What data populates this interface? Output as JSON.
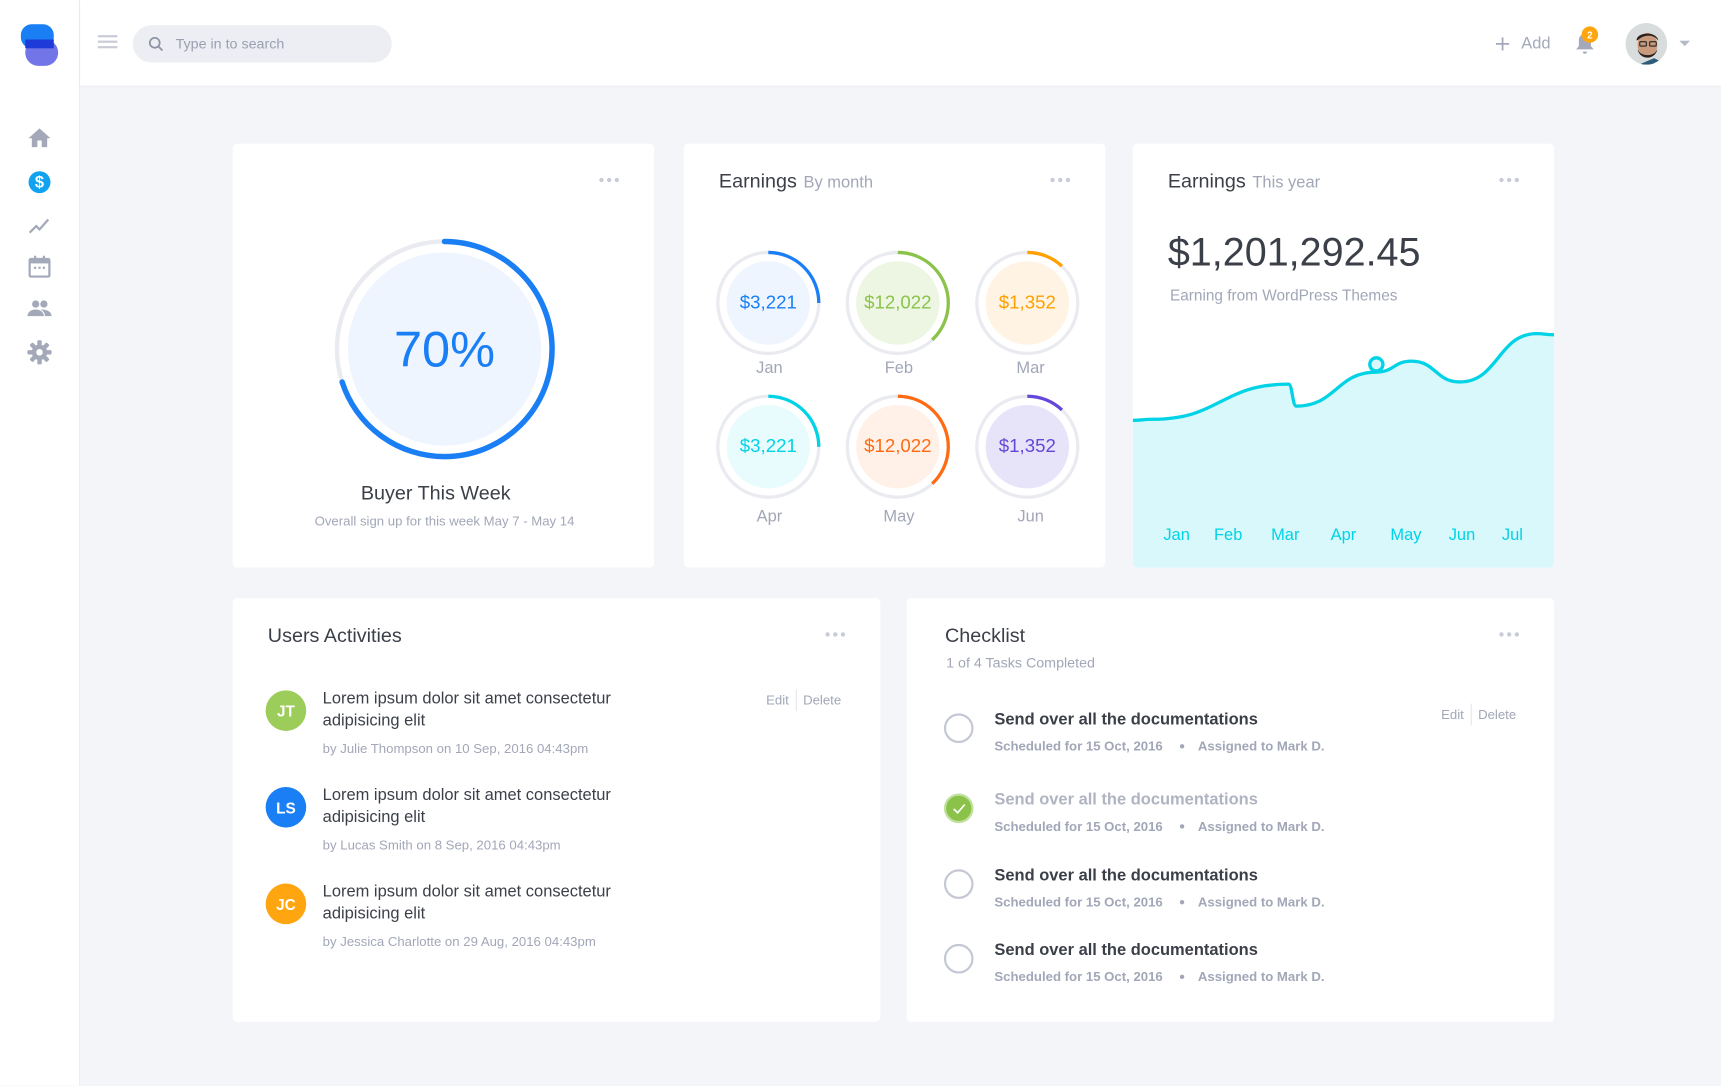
{
  "header": {
    "search_placeholder": "Type in to search",
    "add_label": "Add",
    "notification_count": "2"
  },
  "sidebar": {
    "items": [
      {
        "icon": "home-icon"
      },
      {
        "icon": "dollar-icon",
        "active": true
      },
      {
        "icon": "trend-icon"
      },
      {
        "icon": "calendar-icon"
      },
      {
        "icon": "users-icon"
      },
      {
        "icon": "gear-icon"
      }
    ]
  },
  "colors": {
    "accent": "#1a7ff5",
    "cyan": "#00d3e6",
    "green": "#8bc34a",
    "orange": "#ffa000"
  },
  "buyer": {
    "percent_label": "70%",
    "percent": 70,
    "title": "Buyer This Week",
    "subtitle": "Overall sign up for this week May 7 - May 14"
  },
  "earnings_month": {
    "title": "Earnings",
    "subtitle": "By month",
    "items": [
      {
        "month": "Jan",
        "value": "$3,221",
        "progress": 0.25,
        "color": "#1a7ff5",
        "bg": "#eef5fe"
      },
      {
        "month": "Feb",
        "value": "$12,022",
        "progress": 0.38,
        "color": "#8bc34a",
        "bg": "#edf6e3"
      },
      {
        "month": "Mar",
        "value": "$1,352",
        "progress": 0.12,
        "color": "#ffa000",
        "bg": "#fff4e3"
      },
      {
        "month": "Apr",
        "value": "$3,221",
        "progress": 0.25,
        "color": "#00d3e6",
        "bg": "#e8fbfd"
      },
      {
        "month": "May",
        "value": "$12,022",
        "progress": 0.38,
        "color": "#ff6a13",
        "bg": "#fff1e8"
      },
      {
        "month": "Jun",
        "value": "$1,352",
        "progress": 0.12,
        "color": "#6446d9",
        "bg": "#e7e4f9"
      }
    ]
  },
  "earnings_year": {
    "title": "Earnings",
    "subtitle": "This year",
    "amount": "$1,201,292.45",
    "caption": "Earning from WordPress Themes"
  },
  "chart_data": {
    "type": "area",
    "categories": [
      "Jan",
      "Feb",
      "Mar",
      "Apr",
      "May",
      "Jun",
      "Jul"
    ],
    "values": [
      135,
      167,
      147,
      178,
      188,
      169,
      213
    ],
    "highlight": "May",
    "color": "#00d3e6",
    "fill": "#d8f8fc",
    "grid": false
  },
  "activities": {
    "title": "Users Activities",
    "edit": "Edit",
    "delete": "Delete",
    "items": [
      {
        "initials": "JT",
        "color": "#9ccc5a",
        "text": "Lorem ipsum dolor sit amet consectetur adipisicing elit",
        "meta": "by Julie Thompson on 10 Sep, 2016 04:43pm"
      },
      {
        "initials": "LS",
        "color": "#1a7ff5",
        "text": "Lorem ipsum dolor sit amet consectetur adipisicing elit",
        "meta": "by Lucas Smith on 8 Sep, 2016 04:43pm"
      },
      {
        "initials": "JC",
        "color": "#ffa50f",
        "text": "Lorem ipsum dolor sit amet consectetur adipisicing elit",
        "meta": "by Jessica Charlotte on 29 Aug, 2016 04:43pm"
      }
    ]
  },
  "checklist": {
    "title": "Checklist",
    "summary": "1 of 4 Tasks Completed",
    "edit": "Edit",
    "delete": "Delete",
    "items": [
      {
        "title": "Send over all the documentations",
        "scheduled": "Scheduled for 15 Oct, 2016",
        "assigned": "Assigned to Mark D.",
        "done": false
      },
      {
        "title": "Send over all the documentations",
        "scheduled": "Scheduled for 15 Oct, 2016",
        "assigned": "Assigned to Mark D.",
        "done": true
      },
      {
        "title": "Send over all the documentations",
        "scheduled": "Scheduled for 15 Oct, 2016",
        "assigned": "Assigned to Mark D.",
        "done": false
      },
      {
        "title": "Send over all the documentations",
        "scheduled": "Scheduled for 15 Oct, 2016",
        "assigned": "Assigned to Mark D.",
        "done": false
      }
    ]
  }
}
